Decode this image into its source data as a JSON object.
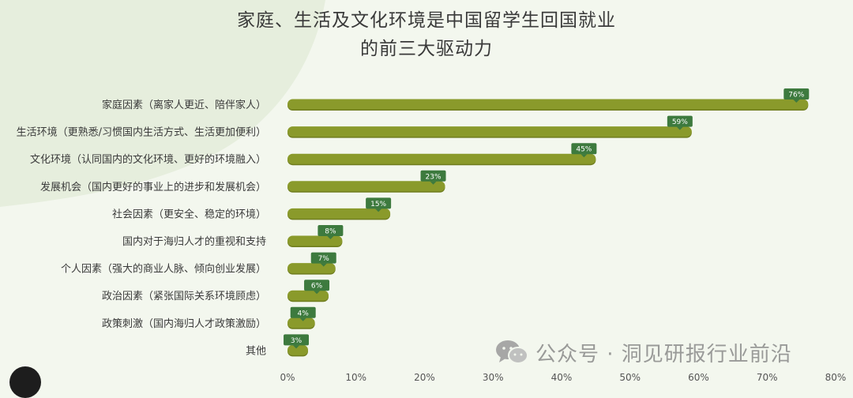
{
  "title": {
    "line1": "家庭、生活及文化环境是中国留学生回国就业",
    "line2": "的前三大驱动力"
  },
  "watermark": {
    "icon": "wechat-icon",
    "text": "公众号 · 洞见研报行业前沿"
  },
  "colors": {
    "bar": "#8a9a2b",
    "bar_shadow": "#6f7d1e",
    "label_bg": "#3d7a3e",
    "label_text": "#ffffff",
    "background": "#f3f7ee",
    "arc": "#e6eedd"
  },
  "chart_data": {
    "type": "bar",
    "orientation": "horizontal",
    "title": "家庭、生活及文化环境是中国留学生回国就业的前三大驱动力",
    "categories": [
      "家庭因素（离家人更近、陪伴家人）",
      "生活环境（更熟悉/习惯国内生活方式、生活更加便利）",
      "文化环境（认同国内的文化环境、更好的环境融入）",
      "发展机会（国内更好的事业上的进步和发展机会）",
      "社会因素（更安全、稳定的环境）",
      "国内对于海归人才的重视和支持",
      "个人因素（强大的商业人脉、倾向创业发展）",
      "政治因素（紧张国际关系环境顾虑）",
      "政策刺激（国内海归人才政策激励）",
      "其他"
    ],
    "values": [
      76,
      59,
      45,
      23,
      15,
      8,
      7,
      6,
      4,
      3
    ],
    "value_labels": [
      "76%",
      "59%",
      "45%",
      "23%",
      "15%",
      "8%",
      "7%",
      "6%",
      "4%",
      "3%"
    ],
    "xlim": [
      0,
      80
    ],
    "xticks": [
      0,
      10,
      20,
      30,
      40,
      50,
      60,
      70,
      80
    ],
    "xtick_labels": [
      "0%",
      "10%",
      "20%",
      "30%",
      "40%",
      "50%",
      "60%",
      "70%",
      "80%"
    ],
    "grid": false,
    "legend": "none"
  }
}
